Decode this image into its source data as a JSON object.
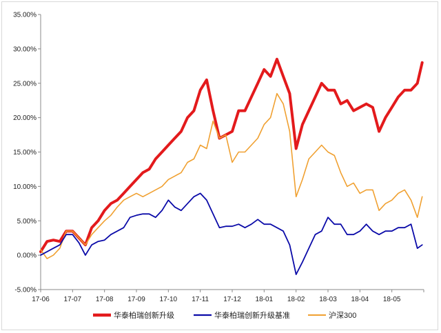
{
  "chart_data": {
    "type": "line",
    "title": "",
    "xlabel": "",
    "ylabel": "",
    "x_ticks": [
      "17-06",
      "17-07",
      "17-08",
      "17-09",
      "17-10",
      "17-11",
      "17-12",
      "18-01",
      "18-02",
      "18-03",
      "18-04",
      "18-05"
    ],
    "y_ticks": [
      "-5.00%",
      "0.00%",
      "5.00%",
      "10.00%",
      "15.00%",
      "20.00%",
      "25.00%",
      "30.00%",
      "35.00%"
    ],
    "ylim": [
      -5,
      35
    ],
    "y_unit": "%",
    "grid": false,
    "legend_position": "bottom",
    "series": [
      {
        "name": "华泰柏瑞创新升级",
        "color": "#e31a1c",
        "points": [
          [
            0,
            0.5
          ],
          [
            0.2,
            2
          ],
          [
            0.4,
            2.2
          ],
          [
            0.6,
            2
          ],
          [
            0.8,
            3.5
          ],
          [
            1,
            3.5
          ],
          [
            1.2,
            2.5
          ],
          [
            1.4,
            1.5
          ],
          [
            1.6,
            4
          ],
          [
            1.8,
            5
          ],
          [
            2,
            6.5
          ],
          [
            2.2,
            7.5
          ],
          [
            2.4,
            8
          ],
          [
            2.6,
            9
          ],
          [
            2.8,
            10
          ],
          [
            3,
            11
          ],
          [
            3.2,
            12
          ],
          [
            3.4,
            12.5
          ],
          [
            3.6,
            14
          ],
          [
            3.8,
            15
          ],
          [
            4,
            16
          ],
          [
            4.2,
            17
          ],
          [
            4.4,
            18
          ],
          [
            4.6,
            20
          ],
          [
            4.8,
            21
          ],
          [
            5,
            24
          ],
          [
            5.2,
            25.5
          ],
          [
            5.4,
            21
          ],
          [
            5.6,
            17
          ],
          [
            5.8,
            17.5
          ],
          [
            6,
            18
          ],
          [
            6.2,
            21
          ],
          [
            6.4,
            21
          ],
          [
            6.6,
            23
          ],
          [
            6.8,
            25
          ],
          [
            7,
            27
          ],
          [
            7.2,
            26
          ],
          [
            7.4,
            28.5
          ],
          [
            7.6,
            26
          ],
          [
            7.8,
            23.5
          ],
          [
            8,
            15.5
          ],
          [
            8.2,
            19
          ],
          [
            8.4,
            21
          ],
          [
            8.6,
            23
          ],
          [
            8.8,
            25
          ],
          [
            9,
            24
          ],
          [
            9.2,
            24
          ],
          [
            9.4,
            22
          ],
          [
            9.6,
            22.5
          ],
          [
            9.8,
            21
          ],
          [
            10,
            21.5
          ],
          [
            10.2,
            22
          ],
          [
            10.4,
            21.5
          ],
          [
            10.6,
            18
          ],
          [
            10.8,
            20
          ],
          [
            11,
            21.5
          ],
          [
            11.2,
            23
          ],
          [
            11.4,
            24
          ],
          [
            11.6,
            24
          ],
          [
            11.8,
            25
          ],
          [
            11.95,
            28
          ]
        ]
      },
      {
        "name": "华泰柏瑞创新升级基准",
        "color": "#0a0aa8",
        "points": [
          [
            0,
            0
          ],
          [
            0.2,
            0.5
          ],
          [
            0.4,
            1
          ],
          [
            0.6,
            1.5
          ],
          [
            0.8,
            3
          ],
          [
            1,
            3
          ],
          [
            1.2,
            1.8
          ],
          [
            1.4,
            0
          ],
          [
            1.6,
            1.5
          ],
          [
            1.8,
            2
          ],
          [
            2,
            2.2
          ],
          [
            2.2,
            3
          ],
          [
            2.4,
            3.5
          ],
          [
            2.6,
            4
          ],
          [
            2.8,
            5.5
          ],
          [
            3,
            5.8
          ],
          [
            3.2,
            6
          ],
          [
            3.4,
            6
          ],
          [
            3.6,
            5.5
          ],
          [
            3.8,
            6.5
          ],
          [
            4,
            8
          ],
          [
            4.2,
            7
          ],
          [
            4.4,
            6.5
          ],
          [
            4.6,
            7.5
          ],
          [
            4.8,
            8.5
          ],
          [
            5,
            9
          ],
          [
            5.2,
            8
          ],
          [
            5.4,
            6
          ],
          [
            5.6,
            4
          ],
          [
            5.8,
            4.2
          ],
          [
            6,
            4.2
          ],
          [
            6.2,
            4.5
          ],
          [
            6.4,
            4
          ],
          [
            6.6,
            4.5
          ],
          [
            6.8,
            5.2
          ],
          [
            7,
            4.5
          ],
          [
            7.2,
            4.5
          ],
          [
            7.4,
            4
          ],
          [
            7.6,
            3.5
          ],
          [
            7.8,
            1.5
          ],
          [
            8,
            -2.8
          ],
          [
            8.2,
            -1
          ],
          [
            8.4,
            1
          ],
          [
            8.6,
            3
          ],
          [
            8.8,
            3.5
          ],
          [
            9,
            5.5
          ],
          [
            9.2,
            4.5
          ],
          [
            9.4,
            4.5
          ],
          [
            9.6,
            3
          ],
          [
            9.8,
            3
          ],
          [
            10,
            3.5
          ],
          [
            10.2,
            4.5
          ],
          [
            10.4,
            3.5
          ],
          [
            10.6,
            3
          ],
          [
            10.8,
            3.5
          ],
          [
            11,
            3.5
          ],
          [
            11.2,
            4
          ],
          [
            11.4,
            4
          ],
          [
            11.6,
            4.5
          ],
          [
            11.8,
            1
          ],
          [
            11.95,
            1.5
          ]
        ]
      },
      {
        "name": "沪深300",
        "color": "#f0a030",
        "points": [
          [
            0,
            0.8
          ],
          [
            0.2,
            -0.5
          ],
          [
            0.4,
            0
          ],
          [
            0.6,
            1
          ],
          [
            0.8,
            3.5
          ],
          [
            1,
            3.5
          ],
          [
            1.2,
            2.5
          ],
          [
            1.4,
            1.5
          ],
          [
            1.6,
            3
          ],
          [
            1.8,
            4
          ],
          [
            2,
            5
          ],
          [
            2.2,
            5.8
          ],
          [
            2.4,
            7
          ],
          [
            2.6,
            8
          ],
          [
            2.8,
            8.5
          ],
          [
            3,
            9
          ],
          [
            3.2,
            8.5
          ],
          [
            3.4,
            9
          ],
          [
            3.6,
            9.5
          ],
          [
            3.8,
            10
          ],
          [
            4,
            11
          ],
          [
            4.2,
            11.5
          ],
          [
            4.4,
            12
          ],
          [
            4.6,
            13.5
          ],
          [
            4.8,
            14
          ],
          [
            5,
            16
          ],
          [
            5.2,
            15.5
          ],
          [
            5.4,
            19.5
          ],
          [
            5.6,
            17
          ],
          [
            5.8,
            17.5
          ],
          [
            6,
            13.5
          ],
          [
            6.2,
            15
          ],
          [
            6.4,
            15
          ],
          [
            6.6,
            16
          ],
          [
            6.8,
            17
          ],
          [
            7,
            19
          ],
          [
            7.2,
            20
          ],
          [
            7.4,
            23.5
          ],
          [
            7.6,
            22
          ],
          [
            7.8,
            18
          ],
          [
            8,
            8.5
          ],
          [
            8.2,
            11
          ],
          [
            8.4,
            14
          ],
          [
            8.6,
            15
          ],
          [
            8.8,
            16
          ],
          [
            9,
            15
          ],
          [
            9.2,
            14.5
          ],
          [
            9.4,
            12
          ],
          [
            9.6,
            10
          ],
          [
            9.8,
            10.5
          ],
          [
            10,
            9
          ],
          [
            10.2,
            9.5
          ],
          [
            10.4,
            9.5
          ],
          [
            10.6,
            6.5
          ],
          [
            10.8,
            7.5
          ],
          [
            11,
            8
          ],
          [
            11.2,
            9
          ],
          [
            11.4,
            9.5
          ],
          [
            11.6,
            8
          ],
          [
            11.8,
            5.5
          ],
          [
            11.95,
            8.5
          ]
        ]
      }
    ]
  }
}
